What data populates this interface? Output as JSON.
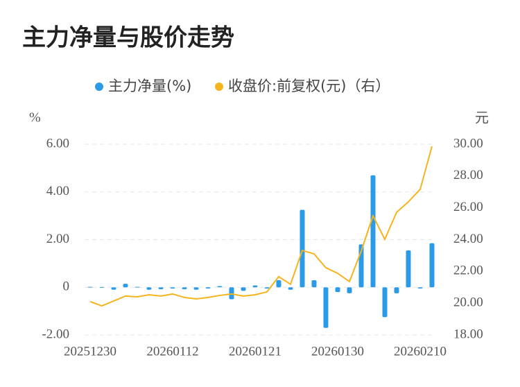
{
  "chart_data": {
    "type": "bar_line",
    "title": "主力净量与股价走势",
    "ylabel": "%",
    "y2label": "元",
    "categories": [
      "20251230",
      null,
      null,
      null,
      null,
      null,
      null,
      "20260112",
      null,
      null,
      null,
      null,
      null,
      null,
      "20260121",
      null,
      null,
      null,
      null,
      null,
      null,
      "20260130",
      null,
      null,
      null,
      null,
      null,
      null,
      "20260210",
      null
    ],
    "series": [
      {
        "name": "主力净量(%)",
        "color": "#2b9be8",
        "type": "bar",
        "values": [
          0.02,
          0.01,
          -0.1,
          0.15,
          0.02,
          -0.1,
          -0.08,
          -0.05,
          -0.08,
          -0.1,
          -0.05,
          0.05,
          -0.5,
          -0.15,
          0.08,
          -0.05,
          0.3,
          -0.1,
          3.25,
          0.3,
          -1.7,
          -0.2,
          -0.25,
          1.8,
          4.7,
          -1.25,
          -0.25,
          1.55,
          -0.05,
          1.85
        ]
      },
      {
        "name": "收盘价:前复权(元)（右）",
        "color": "#f5b41c",
        "type": "line",
        "axis": "y2",
        "values": [
          20.1,
          19.83,
          20.14,
          20.45,
          20.4,
          20.53,
          20.45,
          20.58,
          20.36,
          20.27,
          20.36,
          20.49,
          20.58,
          20.45,
          20.53,
          20.71,
          21.67,
          21.19,
          23.32,
          23.1,
          22.23,
          21.88,
          21.36,
          23.28,
          25.5,
          24.02,
          25.72,
          26.38,
          27.16,
          29.87
        ]
      }
    ],
    "ylim": [
      -2,
      6
    ],
    "yticks": [
      {
        "value": -2,
        "label": "-2.00"
      },
      0,
      {
        "value": 2,
        "label": "2.00"
      },
      {
        "value": 4,
        "label": "4.00"
      },
      {
        "value": 6,
        "label": "6.00"
      }
    ],
    "y2lim": [
      18,
      30
    ],
    "y2ticks": [
      {
        "value": 18,
        "label": "18.00"
      },
      {
        "value": 20,
        "label": "20.00"
      },
      {
        "value": 22,
        "label": "22.00"
      },
      {
        "value": 24,
        "label": "24.00"
      },
      {
        "value": 26,
        "label": "26.00"
      },
      {
        "value": 28,
        "label": "28.00"
      },
      {
        "value": 30,
        "label": "30.00"
      }
    ],
    "grid": true
  }
}
